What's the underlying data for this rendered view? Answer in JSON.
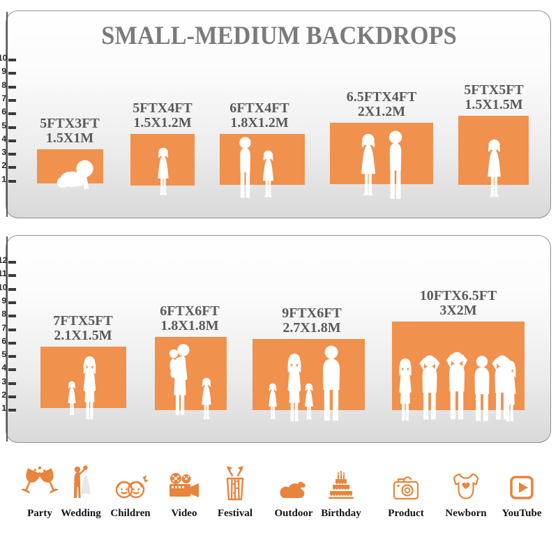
{
  "title": "SMALL-MEDIUM BACKDROPS",
  "panel1": {
    "name": "small backdrops size comparison",
    "ruler_numbers": [
      "10",
      "9",
      "8",
      "7",
      "6",
      "5",
      "4",
      "3",
      "2",
      "1"
    ],
    "backdrops": [
      {
        "size_ft": "5FTX3FT",
        "size_m": "1.5X1M",
        "figures": "crawling-baby"
      },
      {
        "size_ft": "5FTX4FT",
        "size_m": "1.5X1.2M",
        "figures": "toddler-girl"
      },
      {
        "size_ft": "6FTX4FT",
        "size_m": "1.8X1.2M",
        "figures": "boy-and-girl"
      },
      {
        "size_ft": "6.5FTX4FT",
        "size_m": "2X1.2M",
        "figures": "girl-and-boy"
      },
      {
        "size_ft": "5FTX5FT",
        "size_m": "1.5X1.5M",
        "figures": "girl"
      }
    ]
  },
  "panel2": {
    "name": "medium backdrops size comparison",
    "ruler_numbers": [
      "12",
      "11",
      "10",
      "9",
      "8",
      "7",
      "6",
      "5",
      "4",
      "3",
      "2",
      "1"
    ],
    "backdrops": [
      {
        "size_ft": "7FTX5FT",
        "size_m": "2.1X1.5M",
        "figures": "mother-and-child"
      },
      {
        "size_ft": "6FTX6FT",
        "size_m": "1.8X1.8M",
        "figures": "mother-holding-baby-and-girl"
      },
      {
        "size_ft": "9FTX6FT",
        "size_m": "2.7X1.8M",
        "figures": "family-of-four"
      },
      {
        "size_ft": "10FTX6.5FT",
        "size_m": "3X2M",
        "figures": "group-of-six"
      }
    ]
  },
  "categories": [
    {
      "label": "Party",
      "icon": "party-glasses-icon"
    },
    {
      "label": "Wedding",
      "icon": "wedding-couple-icon"
    },
    {
      "label": "Children",
      "icon": "children-faces-icon"
    },
    {
      "label": "Video",
      "icon": "video-camera-icon"
    },
    {
      "label": "Festival",
      "icon": "festival-gift-icon"
    },
    {
      "label": "Outdoor",
      "icon": "outdoor-clouds-icon"
    },
    {
      "label": "Birthday",
      "icon": "birthday-cake-icon"
    },
    {
      "label": "Product",
      "icon": "product-camera-icon"
    },
    {
      "label": "Newborn",
      "icon": "newborn-onesie-icon"
    },
    {
      "label": "YouTube",
      "icon": "youtube-play-icon"
    }
  ],
  "colors": {
    "backdrop_orange": "#F0914E",
    "icon_orange": "#E8843C",
    "title_gray": "#7B7B7B",
    "size_label_gray": "#58595B"
  }
}
